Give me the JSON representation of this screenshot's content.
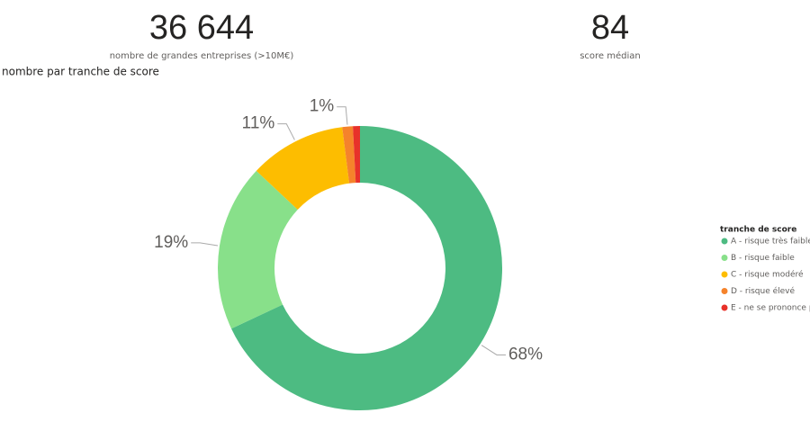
{
  "kpis": [
    {
      "value": "36 644",
      "label": "nombre de grandes entreprises (>10M€)"
    },
    {
      "value": "84",
      "label": "score médian"
    }
  ],
  "chart_data": {
    "type": "donut",
    "title": "nombre par tranche de score",
    "legend_title": "tranche de score",
    "legend_position": "right",
    "categories": [
      "A - risque très faible",
      "B - risque faible",
      "C - risque modéré",
      "D - risque élevé",
      "E - ne se prononce pas"
    ],
    "values": [
      68,
      19,
      11,
      1.2,
      0.8
    ],
    "value_labels": [
      "68%",
      "19%",
      "11%",
      "1%",
      null
    ],
    "colors": [
      "#4dbb82",
      "#88e08a",
      "#fdbd00",
      "#f5832b",
      "#e8312a"
    ]
  }
}
